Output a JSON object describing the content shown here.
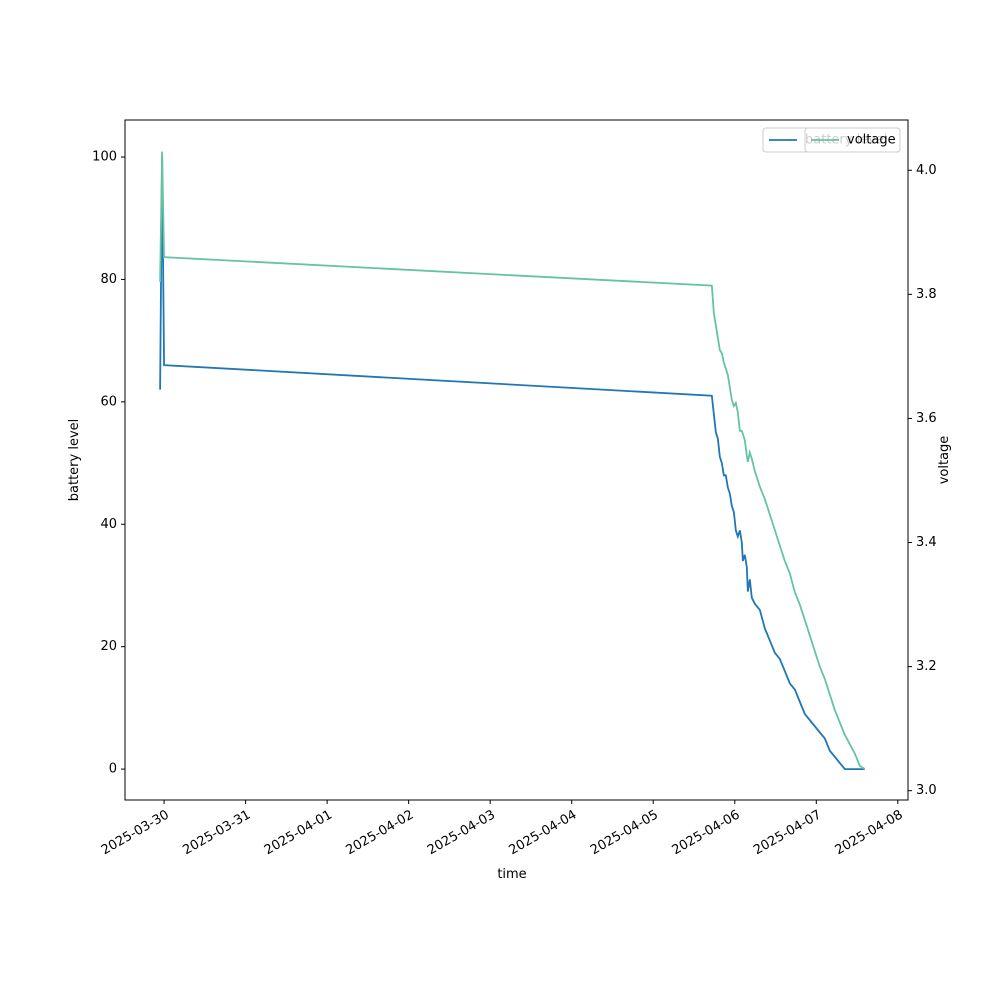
{
  "chart_data": {
    "type": "line",
    "xlabel": "time",
    "ylabel": "battery level",
    "y2label": "voltage",
    "x": [
      "2025-03-29T22:50",
      "2025-03-29T23:25",
      "2025-03-30T00:00",
      "2025-04-05T17:15",
      "2025-04-05T17:51",
      "2025-04-05T18:26",
      "2025-04-05T19:01",
      "2025-04-05T19:37",
      "2025-04-05T20:12",
      "2025-04-05T20:47",
      "2025-04-05T21:22",
      "2025-04-05T21:58",
      "2025-04-05T22:33",
      "2025-04-05T23:08",
      "2025-04-05T23:44",
      "2025-04-06T00:19",
      "2025-04-06T00:54",
      "2025-04-06T01:30",
      "2025-04-06T02:05",
      "2025-04-06T02:23",
      "2025-04-06T02:58",
      "2025-04-06T03:33",
      "2025-04-06T03:51",
      "2025-04-06T04:26",
      "2025-04-06T05:01",
      "2025-04-06T05:55",
      "2025-04-06T07:23",
      "2025-04-06T08:51",
      "2025-04-06T10:20",
      "2025-04-06T11:48",
      "2025-04-06T13:16",
      "2025-04-06T14:45",
      "2025-04-06T16:13",
      "2025-04-06T17:41",
      "2025-04-06T19:09",
      "2025-04-06T20:38",
      "2025-04-06T22:06",
      "2025-04-06T23:34",
      "2025-04-07T01:02",
      "2025-04-07T02:31",
      "2025-04-07T03:59",
      "2025-04-07T05:27",
      "2025-04-07T06:55",
      "2025-04-07T08:24",
      "2025-04-07T09:52",
      "2025-04-07T11:20",
      "2025-04-07T12:48",
      "2025-04-07T14:17"
    ],
    "series": [
      {
        "name": "battery level",
        "color": "#1f77b4",
        "axis": "y",
        "values": [
          62,
          100,
          66,
          61,
          58,
          55,
          54,
          51,
          50,
          48,
          48,
          46,
          45,
          43,
          42,
          39,
          38,
          39,
          37,
          34,
          35,
          33,
          29,
          31,
          28,
          27,
          26,
          23,
          21,
          19,
          18,
          16,
          14,
          13,
          11,
          9,
          8,
          7,
          6,
          5,
          3,
          2,
          1,
          0,
          0,
          0,
          0,
          0
        ]
      },
      {
        "name": "voltage",
        "color": "#66c2a5",
        "axis": "y2",
        "values": [
          3.82,
          4.03,
          3.86,
          3.814,
          3.77,
          3.75,
          3.73,
          3.71,
          3.705,
          3.69,
          3.68,
          3.67,
          3.65,
          3.63,
          3.62,
          3.625,
          3.61,
          3.58,
          3.58,
          3.575,
          3.565,
          3.54,
          3.53,
          3.545,
          3.535,
          3.515,
          3.49,
          3.47,
          3.445,
          3.42,
          3.395,
          3.37,
          3.35,
          3.32,
          3.3,
          3.275,
          3.25,
          3.225,
          3.2,
          3.18,
          3.155,
          3.13,
          3.11,
          3.09,
          3.075,
          3.06,
          3.04,
          3.035
        ]
      }
    ],
    "xlim": [
      "2025-03-29T12:30",
      "2025-04-08T03:00"
    ],
    "xticks": [
      "2025-03-30",
      "2025-03-31",
      "2025-04-01",
      "2025-04-02",
      "2025-04-03",
      "2025-04-04",
      "2025-04-05",
      "2025-04-06",
      "2025-04-07",
      "2025-04-08"
    ],
    "ylim": [
      -5.05,
      106.05
    ],
    "yticks": [
      0,
      20,
      40,
      60,
      80,
      100
    ],
    "y2lim": [
      2.985,
      4.081
    ],
    "y2ticks": [
      {
        "value": 3,
        "label": "3.0"
      },
      3.2,
      3.4,
      3.6,
      3.8,
      {
        "value": 4,
        "label": "4.0"
      }
    ],
    "legend": "upper right"
  }
}
